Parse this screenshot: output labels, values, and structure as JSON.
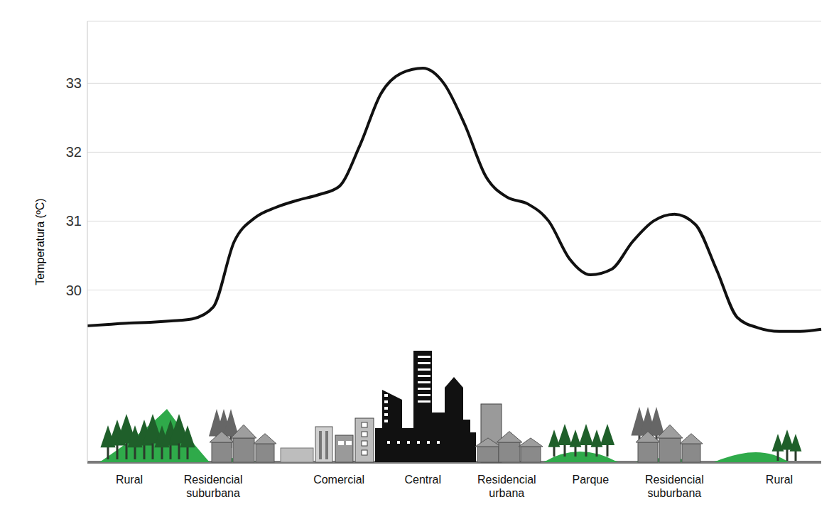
{
  "chart_data": {
    "type": "line",
    "y_label": "Temperatura (ºC)",
    "categories": [
      null,
      null,
      "Rural",
      null,
      null,
      null,
      "Residencial suburbana",
      null,
      null,
      null,
      null,
      null,
      "Comercial",
      null,
      null,
      null,
      "Central",
      null,
      null,
      null,
      "Residencial urbana",
      null,
      null,
      null,
      "Parque",
      null,
      null,
      null,
      "Residencial suburbana",
      null,
      null,
      null,
      null,
      "Rural",
      null,
      null
    ],
    "values": [
      29.48,
      29.5,
      29.52,
      29.53,
      29.55,
      29.58,
      29.75,
      30.7,
      31.05,
      31.2,
      31.3,
      31.38,
      31.5,
      32.1,
      32.85,
      33.15,
      33.22,
      33.0,
      32.4,
      31.65,
      31.35,
      31.25,
      31.0,
      30.45,
      30.22,
      30.3,
      30.7,
      31.0,
      31.1,
      30.95,
      30.3,
      29.6,
      29.45,
      29.4,
      29.4,
      29.43
    ],
    "color": "#111111",
    "ylim": [
      27.5,
      33.9
    ],
    "yticks": [
      30,
      31,
      32,
      33
    ],
    "grid": true,
    "line_style": "solid",
    "marker": "none"
  }
}
